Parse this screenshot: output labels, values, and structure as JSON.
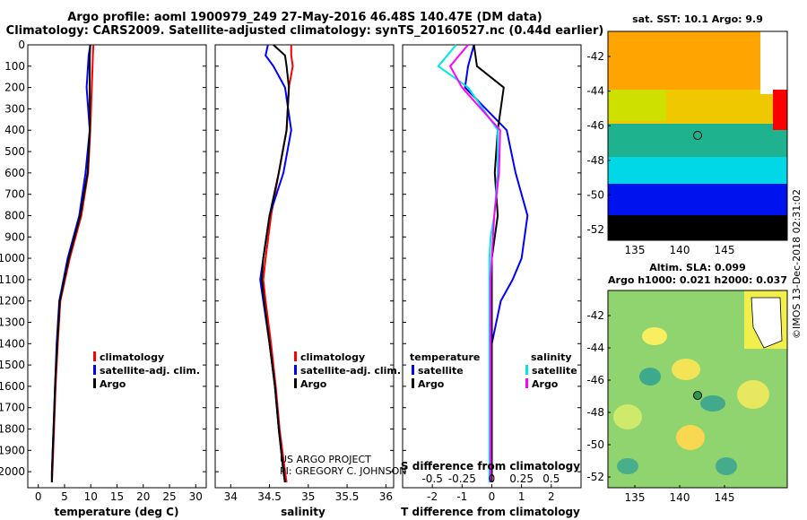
{
  "header": {
    "line1": "Argo profile: aoml 1900979_249 27-May-2016 46.48S 140.47E (DM data)",
    "line2": "Climatology: CARS2009. Satellite-adjusted climatology: synTS_20160527.nc (0.44d earlier)"
  },
  "colors": {
    "climatology": "#ff0000",
    "satellite": "#0000ff",
    "argo": "#000000",
    "satellite_s": "#00e5ee",
    "argo_s": "#ff00ff"
  },
  "legend1": {
    "climatology": "climatology",
    "satellite": "satellite-adj. clim.",
    "argo": "Argo"
  },
  "legend2": {
    "climatology": "climatology",
    "satellite": "satellite-adj. clim.",
    "argo": "Argo"
  },
  "legend3": {
    "temperature": "temperature",
    "satellite": "satellite",
    "argo": "Argo",
    "salinity": "salinity",
    "satellite_s": "satellite",
    "argo_s": "Argo"
  },
  "credit": {
    "line1": "US ARGO PROJECT",
    "line2": "PI: GREGORY C. JOHNSON"
  },
  "right_panels": {
    "sst_title": "sat. SST: 10.1 Argo: 9.9",
    "sla_title1": "Altim. SLA: 0.099",
    "sla_title2": "Argo h1000: 0.021 h2000: 0.037",
    "stamp": "©IMOS 13-Dec-2018 02:31:02",
    "lat_ticks": [
      "-42",
      "-44",
      "-46",
      "-48",
      "-50",
      "-52"
    ],
    "lon_ticks": [
      "135",
      "140",
      "145"
    ]
  },
  "chart_data": [
    {
      "type": "line",
      "xlabel": "temperature (deg C)",
      "ylabel": "",
      "xlim": [
        -2,
        32
      ],
      "ylim": [
        2075,
        0
      ],
      "xticks": [
        "0",
        "5",
        "10",
        "15",
        "20",
        "25",
        "30"
      ],
      "yticks": [
        "0",
        "100",
        "200",
        "300",
        "400",
        "500",
        "600",
        "700",
        "800",
        "900",
        "1000",
        "1100",
        "1200",
        "1300",
        "1400",
        "1500",
        "1600",
        "1700",
        "1800",
        "1900",
        "2000"
      ],
      "depth": [
        0,
        50,
        200,
        400,
        600,
        800,
        1000,
        1200,
        1400,
        1600,
        1800,
        2000,
        2050
      ],
      "series": [
        {
          "name": "climatology",
          "values": [
            10.5,
            10.4,
            10.2,
            9.9,
            9.5,
            8.2,
            6.0,
            4.2,
            3.7,
            3.3,
            3.0,
            2.7,
            2.6
          ]
        },
        {
          "name": "satellite-adj. clim.",
          "values": [
            9.9,
            9.6,
            9.2,
            9.8,
            9.0,
            7.8,
            5.6,
            4.0,
            3.5,
            3.2,
            2.9,
            2.6,
            2.6
          ]
        },
        {
          "name": "Argo",
          "values": [
            9.9,
            9.8,
            9.8,
            9.8,
            9.4,
            8.0,
            5.8,
            4.1,
            3.6,
            3.2,
            2.9,
            2.6,
            2.6
          ]
        }
      ]
    },
    {
      "type": "line",
      "xlabel": "salinity",
      "ylabel": "",
      "xlim": [
        33.8,
        36.1
      ],
      "ylim": [
        2075,
        0
      ],
      "xticks": [
        "34",
        "34.5",
        "35",
        "35.5",
        "36"
      ],
      "depth": [
        0,
        50,
        100,
        200,
        400,
        600,
        800,
        1000,
        1100,
        1200,
        1400,
        1600,
        1800,
        2000,
        2050
      ],
      "series": [
        {
          "name": "climatology",
          "values": [
            34.78,
            34.78,
            34.8,
            34.75,
            34.72,
            34.62,
            34.52,
            34.45,
            34.42,
            34.45,
            34.52,
            34.58,
            34.63,
            34.7,
            34.72
          ]
        },
        {
          "name": "satellite-adj. clim.",
          "values": [
            34.48,
            34.45,
            34.55,
            34.7,
            34.78,
            34.68,
            34.5,
            34.42,
            34.38,
            34.42,
            34.5,
            34.57,
            34.62,
            34.68,
            34.7
          ]
        },
        {
          "name": "Argo",
          "values": [
            34.55,
            34.7,
            34.72,
            34.75,
            34.72,
            34.62,
            34.5,
            34.42,
            34.4,
            34.43,
            34.5,
            34.57,
            34.62,
            34.68,
            34.7
          ]
        }
      ]
    },
    {
      "type": "line",
      "xlabel": "T difference from climatology",
      "xlabel_top": "S difference from climatology",
      "ylabel": "",
      "xlim": [
        -3,
        3
      ],
      "ylim": [
        2075,
        0
      ],
      "xticks": [
        "-2",
        "-1",
        "0",
        "1",
        "2"
      ],
      "xticks_top": [
        "-0.5",
        "-0.25",
        "0",
        "0.25",
        "0.5"
      ],
      "depth": [
        0,
        100,
        200,
        400,
        600,
        800,
        900,
        1000,
        1100,
        1200,
        1400,
        1600,
        1800,
        2000,
        2050
      ],
      "series": [
        {
          "name": "temperature satellite",
          "values": [
            -0.6,
            -0.8,
            -0.9,
            0.5,
            0.8,
            1.2,
            1.1,
            1.0,
            0.7,
            0.3,
            0.0,
            0.0,
            0.0,
            0.0,
            0.0
          ]
        },
        {
          "name": "temperature Argo",
          "values": [
            -0.6,
            -0.5,
            0.4,
            0.2,
            0.1,
            0.2,
            0.1,
            0.0,
            0.0,
            0.0,
            0.0,
            0.0,
            0.0,
            0.0,
            0.0
          ]
        },
        {
          "name": "salinity satellite",
          "values": [
            -0.3,
            -0.45,
            -0.2,
            0.05,
            0.05,
            0.02,
            -0.01,
            -0.02,
            -0.02,
            -0.02,
            -0.02,
            -0.02,
            -0.02,
            -0.02,
            -0.02
          ]
        },
        {
          "name": "salinity Argo",
          "values": [
            -0.2,
            -0.35,
            -0.25,
            0.07,
            0.06,
            0.02,
            0.01,
            0.0,
            -0.01,
            -0.01,
            -0.01,
            -0.01,
            -0.01,
            -0.01,
            -0.01
          ]
        }
      ]
    }
  ]
}
